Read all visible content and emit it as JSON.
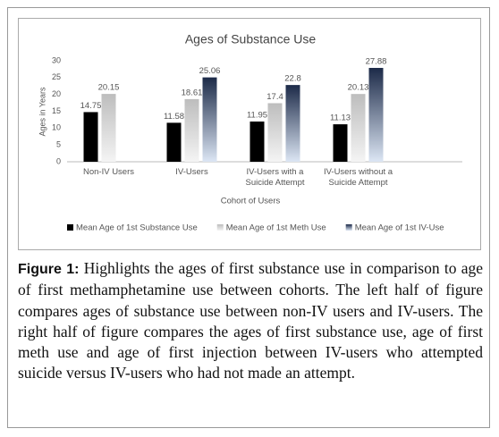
{
  "chart_data": {
    "type": "bar",
    "title": "Ages of Substance Use",
    "y_label": "Ages in Years",
    "x_label": "Cohort of Users",
    "categories": [
      "Non-IV Users",
      "IV-Users",
      "IV-Users with a Suicide Attempt",
      "IV-Users without a Suicide Attempt"
    ],
    "series": [
      {
        "name": "Mean Age of 1st Substance Use",
        "color": "#000000",
        "values": [
          14.75,
          11.58,
          11.95,
          11.13
        ]
      },
      {
        "name": "Mean Age of 1st Meth Use",
        "color": "#bdbdbd",
        "values": [
          20.15,
          18.61,
          17.4,
          20.13
        ]
      },
      {
        "name": "Mean Age of 1st IV-Use",
        "color": "#1c2a48",
        "values": [
          null,
          25.06,
          22.8,
          27.88
        ]
      }
    ],
    "ylim": [
      0,
      30
    ],
    "yticks": [
      0,
      5,
      10,
      15,
      20,
      25,
      30
    ],
    "grid": false,
    "legend": "bottom"
  },
  "caption": {
    "label": "Figure 1:",
    "text": "Highlights the ages of first substance use in comparison to age of first methamphetamine use between cohorts. The left half of figure compares ages of substance use between non-IV users and IV-users. The right half of figure compares the ages of first substance use, age of first meth use and age of first injection between IV-users who attempted suicide versus IV-users who had not made an attempt."
  }
}
